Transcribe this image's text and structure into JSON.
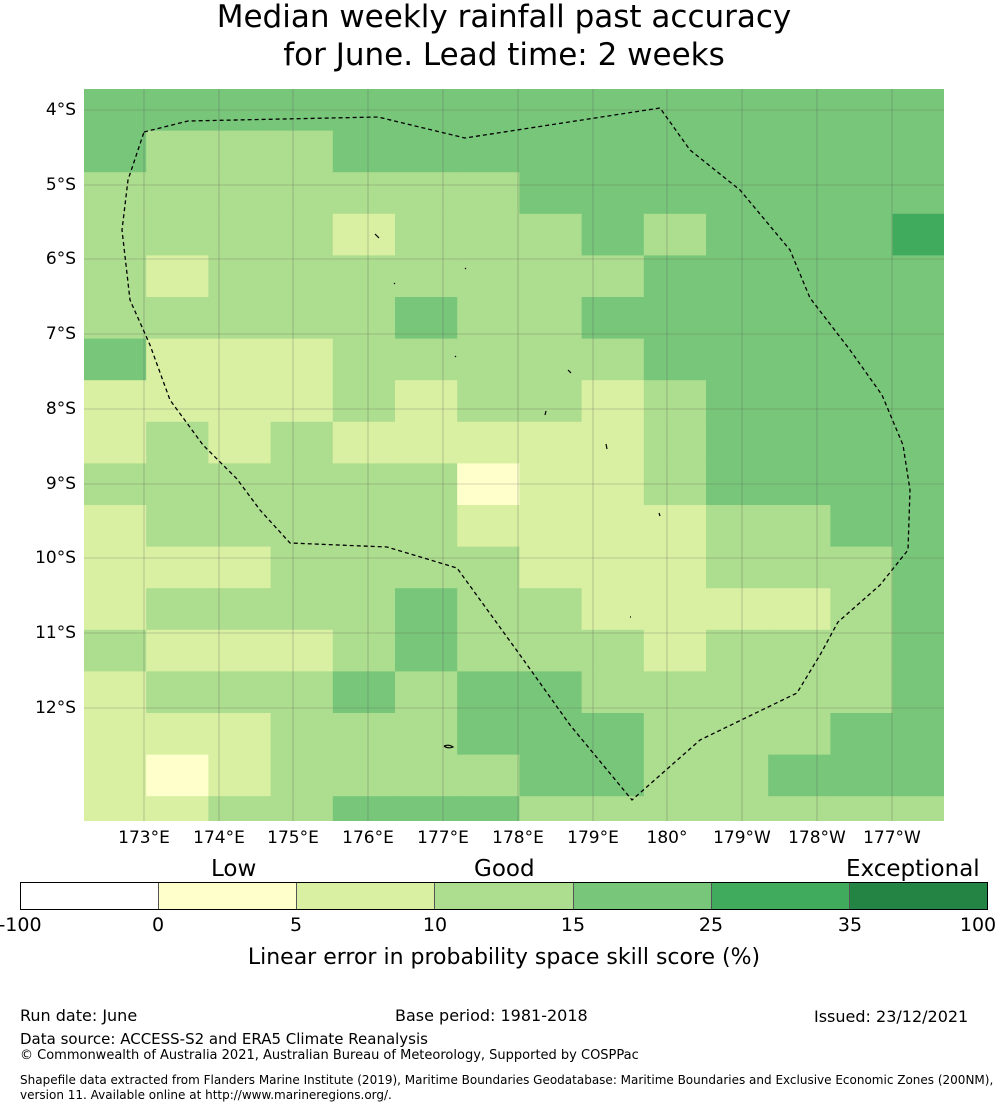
{
  "title": {
    "line1": "Median weekly rainfall past accuracy",
    "line2": "for June. Lead time: 2 weeks"
  },
  "map": {
    "lat_labels": [
      "4°S",
      "5°S",
      "6°S",
      "7°S",
      "8°S",
      "9°S",
      "10°S",
      "11°S",
      "12°S"
    ],
    "lon_labels": [
      "173°E",
      "174°E",
      "175°E",
      "176°E",
      "177°E",
      "178°E",
      "179°E",
      "180°",
      "179°W",
      "178°W",
      "177°W"
    ],
    "colors": [
      "#ffffcc",
      "#d9f0a3",
      "#addd8e",
      "#78c679",
      "#41ab5d",
      "#238443"
    ],
    "grid_lon_start": 172.2,
    "grid_lat_start": -3.8,
    "grid_step": 0.833,
    "grid": [
      [
        3,
        3,
        3,
        3,
        3,
        3,
        3,
        3,
        3,
        3,
        3,
        3,
        3,
        3
      ],
      [
        3,
        2,
        2,
        2,
        3,
        3,
        3,
        3,
        3,
        3,
        3,
        3,
        3,
        3
      ],
      [
        2,
        2,
        2,
        2,
        2,
        2,
        2,
        3,
        3,
        3,
        3,
        3,
        3,
        3
      ],
      [
        2,
        2,
        2,
        2,
        1,
        2,
        2,
        2,
        3,
        2,
        3,
        3,
        3,
        4
      ],
      [
        2,
        1,
        2,
        2,
        2,
        2,
        2,
        2,
        2,
        3,
        3,
        3,
        3,
        3
      ],
      [
        2,
        2,
        2,
        2,
        2,
        3,
        2,
        2,
        3,
        3,
        3,
        3,
        3,
        3
      ],
      [
        3,
        1,
        1,
        1,
        2,
        2,
        2,
        2,
        2,
        3,
        3,
        3,
        3,
        3
      ],
      [
        1,
        1,
        1,
        1,
        2,
        1,
        2,
        2,
        1,
        2,
        3,
        3,
        3,
        3
      ],
      [
        1,
        2,
        1,
        2,
        1,
        1,
        1,
        1,
        1,
        2,
        3,
        3,
        3,
        3
      ],
      [
        2,
        2,
        2,
        2,
        2,
        2,
        0,
        1,
        1,
        2,
        3,
        3,
        3,
        3
      ],
      [
        1,
        2,
        2,
        2,
        2,
        2,
        1,
        1,
        1,
        1,
        2,
        2,
        3,
        3
      ],
      [
        1,
        1,
        1,
        2,
        2,
        2,
        2,
        1,
        1,
        1,
        2,
        2,
        2,
        3
      ],
      [
        1,
        2,
        2,
        2,
        2,
        3,
        2,
        2,
        1,
        1,
        1,
        1,
        2,
        3
      ],
      [
        2,
        1,
        1,
        1,
        2,
        3,
        2,
        2,
        2,
        1,
        2,
        2,
        2,
        3
      ],
      [
        1,
        2,
        2,
        2,
        3,
        2,
        3,
        3,
        2,
        2,
        2,
        2,
        2,
        3
      ],
      [
        1,
        1,
        1,
        2,
        2,
        2,
        3,
        3,
        3,
        2,
        2,
        2,
        3,
        3
      ],
      [
        1,
        0,
        1,
        2,
        2,
        2,
        2,
        3,
        3,
        2,
        2,
        3,
        3,
        3
      ],
      [
        1,
        1,
        2,
        2,
        3,
        3,
        3,
        2,
        2,
        2,
        2,
        2,
        2,
        2
      ],
      [
        1,
        1,
        2,
        2,
        3,
        3,
        3,
        2,
        2,
        3,
        1,
        1,
        2,
        1
      ]
    ]
  },
  "legend": {
    "categories": [
      "Low",
      "Good",
      "Exceptional"
    ],
    "bins": [
      "#ffffff",
      "#ffffcc",
      "#d9f0a3",
      "#addd8e",
      "#78c679",
      "#41ab5d",
      "#238443"
    ],
    "ticks": [
      "-100",
      "0",
      "5",
      "10",
      "15",
      "25",
      "35",
      "100"
    ],
    "label": "Linear error in probability space skill score (%)"
  },
  "footer": {
    "run_date": "Run date: June",
    "base_period": "Base period: 1981-2018",
    "issued": "Issued: 23/12/2021",
    "source": "Data source: ACCESS-S2 and ERA5 Climate Reanalysis",
    "copyright": "© Commonwealth of Australia 2021, Australian Bureau of Meteorology, Supported by COSPPac",
    "shapefile": "Shapefile data extracted from Flanders Marine Institute (2019), Maritime Boundaries Geodatabase: Maritime Boundaries and Exclusive Economic Zones (200NM), version 11. Available online at http://www.marineregions.org/."
  }
}
